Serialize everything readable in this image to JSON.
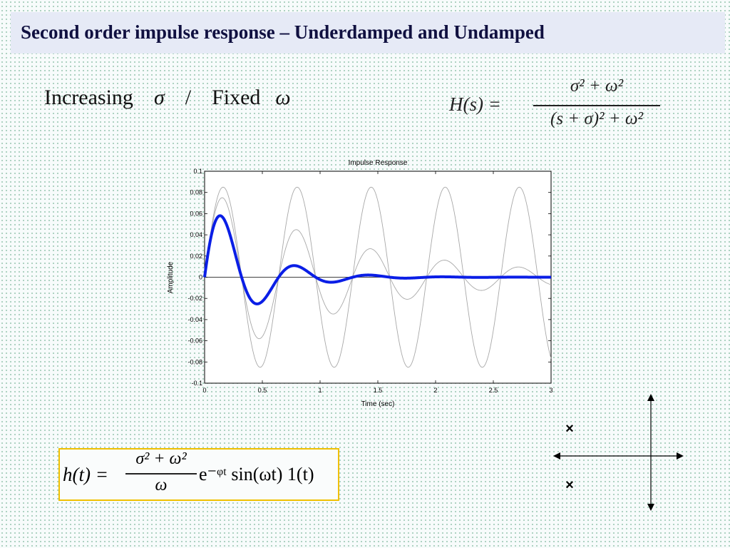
{
  "slide": {
    "title": "Second order impulse response – Underdamped and Undamped",
    "subtitle": {
      "word_increasing": "Increasing",
      "sigma": "σ",
      "slash": "/",
      "word_fixed": "Fixed",
      "omega": "ω"
    },
    "transfer_function": {
      "lhs": "H(s) =",
      "numerator": "σ² + ω²",
      "denominator": "(s + σ)² + ω²"
    },
    "impulse_equation": {
      "lhs": "h(t) =",
      "numerator": "σ² + ω²",
      "denominator": "ω",
      "tail": "e⁻ᵠᵗ sin(ωt) 1(t)"
    },
    "pole_markers": [
      "×",
      "×"
    ]
  },
  "colors": {
    "highlight_curve": "#0a1ee6",
    "other_curves": "#a8a8a8",
    "equation_border": "#f0c000",
    "title_bg": "#e6eaf6"
  },
  "chart_data": {
    "type": "line",
    "title": "Impulse Response",
    "xlabel": "Time (sec)",
    "ylabel": "Amplitude",
    "xlim": [
      0,
      3
    ],
    "ylim": [
      -0.1,
      0.1
    ],
    "xticks": [
      0,
      0.5,
      1,
      1.5,
      2,
      2.5,
      3
    ],
    "xtick_labels": [
      "0",
      "0.5",
      "1",
      "1.5",
      "2",
      "2.5",
      "3"
    ],
    "yticks": [
      -0.1,
      -0.08,
      -0.06,
      -0.04,
      -0.02,
      0,
      0.02,
      0.04,
      0.06,
      0.08,
      0.1
    ],
    "ytick_labels": [
      "-0.1",
      "-0.08",
      "-0.06",
      "-0.04",
      "-0.02",
      "0",
      "0.02",
      "0.04",
      "0.06",
      "0.08",
      "0.1"
    ],
    "grid": false,
    "highlight_series": 2,
    "series": [
      {
        "sigma": 0.0,
        "omega": 9.8,
        "amplitude": 0.085
      },
      {
        "sigma": 0.8,
        "omega": 9.8,
        "amplitude": 0.085
      },
      {
        "sigma": 2.6,
        "omega": 9.8,
        "amplitude": 0.085
      }
    ]
  }
}
